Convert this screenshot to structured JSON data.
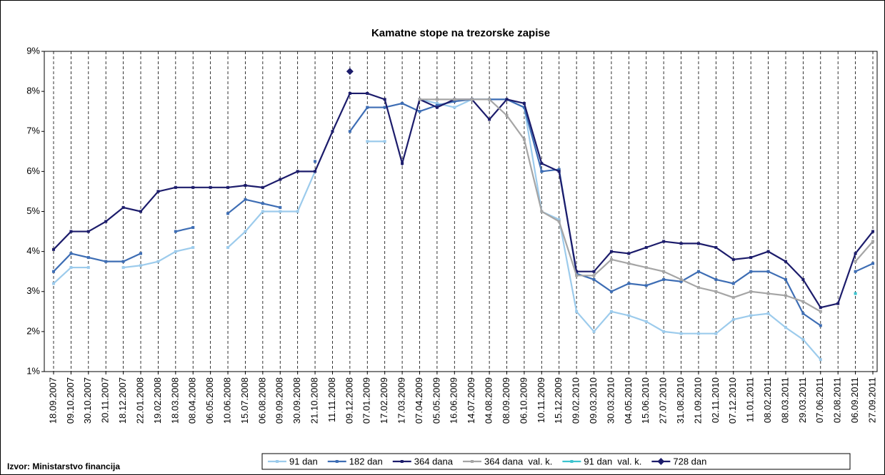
{
  "chart_data": {
    "type": "line",
    "title": "Kamatne stope na trezorske zapise",
    "source": "Izvor: Ministarstvo financija",
    "categories": [
      "18.09.2007",
      "09.10.2007",
      "30.10.2007",
      "20.11.2007",
      "18.12.2007",
      "22.01.2008",
      "19.02.2008",
      "18.03.2008",
      "08.04.2008",
      "06.05.2008",
      "10.06.2008",
      "15.07.2008",
      "06.08.2008",
      "09.09.2008",
      "30.09.2008",
      "21.10.2008",
      "11.11.2008",
      "09.12.2008",
      "07.01.2009",
      "17.02.2009",
      "17.03.2009",
      "07.04.2009",
      "05.05.2009",
      "16.06.2009",
      "14.07.2009",
      "04.08.2009",
      "08.09.2009",
      "06.10.2009",
      "10.11.2009",
      "15.12.2009",
      "09.02.2010",
      "09.03.2010",
      "30.03.2010",
      "04.05.2010",
      "15.06.2010",
      "27.07.2010",
      "31.08.2010",
      "21.09.2010",
      "02.11.2010",
      "07.12.2010",
      "11.01.2011",
      "08.02.2011",
      "08.03.2011",
      "29.03.2011",
      "07.06.2011",
      "02.08.2011",
      "06.09.2011",
      "27.09.2011"
    ],
    "series": [
      {
        "name": "91 dan",
        "color": "#9ccbec",
        "marker": "square",
        "values": [
          3.2,
          3.6,
          3.6,
          null,
          3.6,
          3.65,
          3.75,
          4.0,
          4.1,
          null,
          4.1,
          4.5,
          5.0,
          5.0,
          5.0,
          6.0,
          null,
          null,
          6.75,
          6.75,
          null,
          7.8,
          7.7,
          7.6,
          7.8,
          7.8,
          7.8,
          7.6,
          5.0,
          4.8,
          2.5,
          2.0,
          2.5,
          2.4,
          2.25,
          2.0,
          1.95,
          1.95,
          1.95,
          2.3,
          2.4,
          2.45,
          2.1,
          1.8,
          1.3,
          null,
          null,
          null
        ]
      },
      {
        "name": "182 dan",
        "color": "#3d6db4",
        "marker": "square",
        "values": [
          3.5,
          3.95,
          3.85,
          3.75,
          3.75,
          3.95,
          null,
          4.5,
          4.6,
          null,
          4.95,
          5.3,
          5.2,
          5.1,
          null,
          6.25,
          null,
          7.0,
          7.6,
          7.6,
          7.7,
          7.5,
          7.65,
          7.75,
          7.8,
          7.8,
          7.8,
          7.6,
          6.0,
          6.05,
          3.45,
          3.3,
          3.0,
          3.2,
          3.15,
          3.3,
          3.25,
          3.5,
          3.3,
          3.2,
          3.5,
          3.5,
          3.3,
          2.45,
          2.15,
          null,
          3.5,
          3.7
        ]
      },
      {
        "name": "364 dana",
        "color": "#1c1c6b",
        "marker": "square",
        "values": [
          4.05,
          4.5,
          4.5,
          4.75,
          5.1,
          5.0,
          5.5,
          5.6,
          5.6,
          5.6,
          5.6,
          5.65,
          5.6,
          5.8,
          6.0,
          6.0,
          7.0,
          7.95,
          7.95,
          7.8,
          6.2,
          7.8,
          7.6,
          7.8,
          7.8,
          7.3,
          7.8,
          7.7,
          6.2,
          6.0,
          3.5,
          3.5,
          4.0,
          3.95,
          4.1,
          4.25,
          4.2,
          4.2,
          4.1,
          3.8,
          3.85,
          4.0,
          3.75,
          3.3,
          2.6,
          2.7,
          3.95,
          4.5
        ]
      },
      {
        "name": "364 dana  val. k.",
        "color": "#a5a5a5",
        "marker": "square",
        "values": [
          null,
          null,
          null,
          null,
          null,
          null,
          null,
          null,
          null,
          null,
          null,
          null,
          null,
          null,
          null,
          null,
          null,
          null,
          null,
          null,
          null,
          7.8,
          7.8,
          7.8,
          7.8,
          7.8,
          7.4,
          6.8,
          5.0,
          4.75,
          3.4,
          3.4,
          3.8,
          3.7,
          3.6,
          3.5,
          3.3,
          3.1,
          3.0,
          2.85,
          3.0,
          2.95,
          2.9,
          2.75,
          2.5,
          null,
          3.75,
          4.25
        ]
      },
      {
        "name": "91 dan  val. k.",
        "color": "#3cc4cf",
        "marker": "square",
        "values": [
          null,
          null,
          null,
          null,
          null,
          null,
          null,
          null,
          null,
          null,
          null,
          null,
          null,
          null,
          null,
          null,
          null,
          null,
          null,
          null,
          null,
          null,
          null,
          null,
          null,
          null,
          null,
          null,
          null,
          null,
          null,
          null,
          null,
          null,
          null,
          null,
          null,
          null,
          null,
          null,
          null,
          null,
          null,
          null,
          null,
          null,
          2.95,
          null
        ]
      },
      {
        "name": "728 dan",
        "color": "#1c1c6b",
        "marker": "diamond",
        "values": [
          null,
          null,
          null,
          null,
          null,
          null,
          null,
          null,
          null,
          null,
          null,
          null,
          null,
          null,
          null,
          null,
          null,
          8.5,
          null,
          null,
          null,
          null,
          null,
          null,
          null,
          null,
          null,
          null,
          null,
          null,
          null,
          null,
          null,
          null,
          null,
          null,
          null,
          null,
          null,
          null,
          null,
          null,
          null,
          null,
          null,
          null,
          null,
          null
        ]
      }
    ],
    "ylim": [
      1,
      9
    ],
    "yticks": [
      {
        "value": 1,
        "label": "1%"
      },
      {
        "value": 2,
        "label": "2%"
      },
      {
        "value": 3,
        "label": "3%"
      },
      {
        "value": 4,
        "label": "4%"
      },
      {
        "value": 5,
        "label": "5%"
      },
      {
        "value": 6,
        "label": "6%"
      },
      {
        "value": 7,
        "label": "7%"
      },
      {
        "value": 8,
        "label": "8%"
      },
      {
        "value": 9,
        "label": "9%"
      }
    ],
    "grid": true,
    "legend": "bottom"
  }
}
